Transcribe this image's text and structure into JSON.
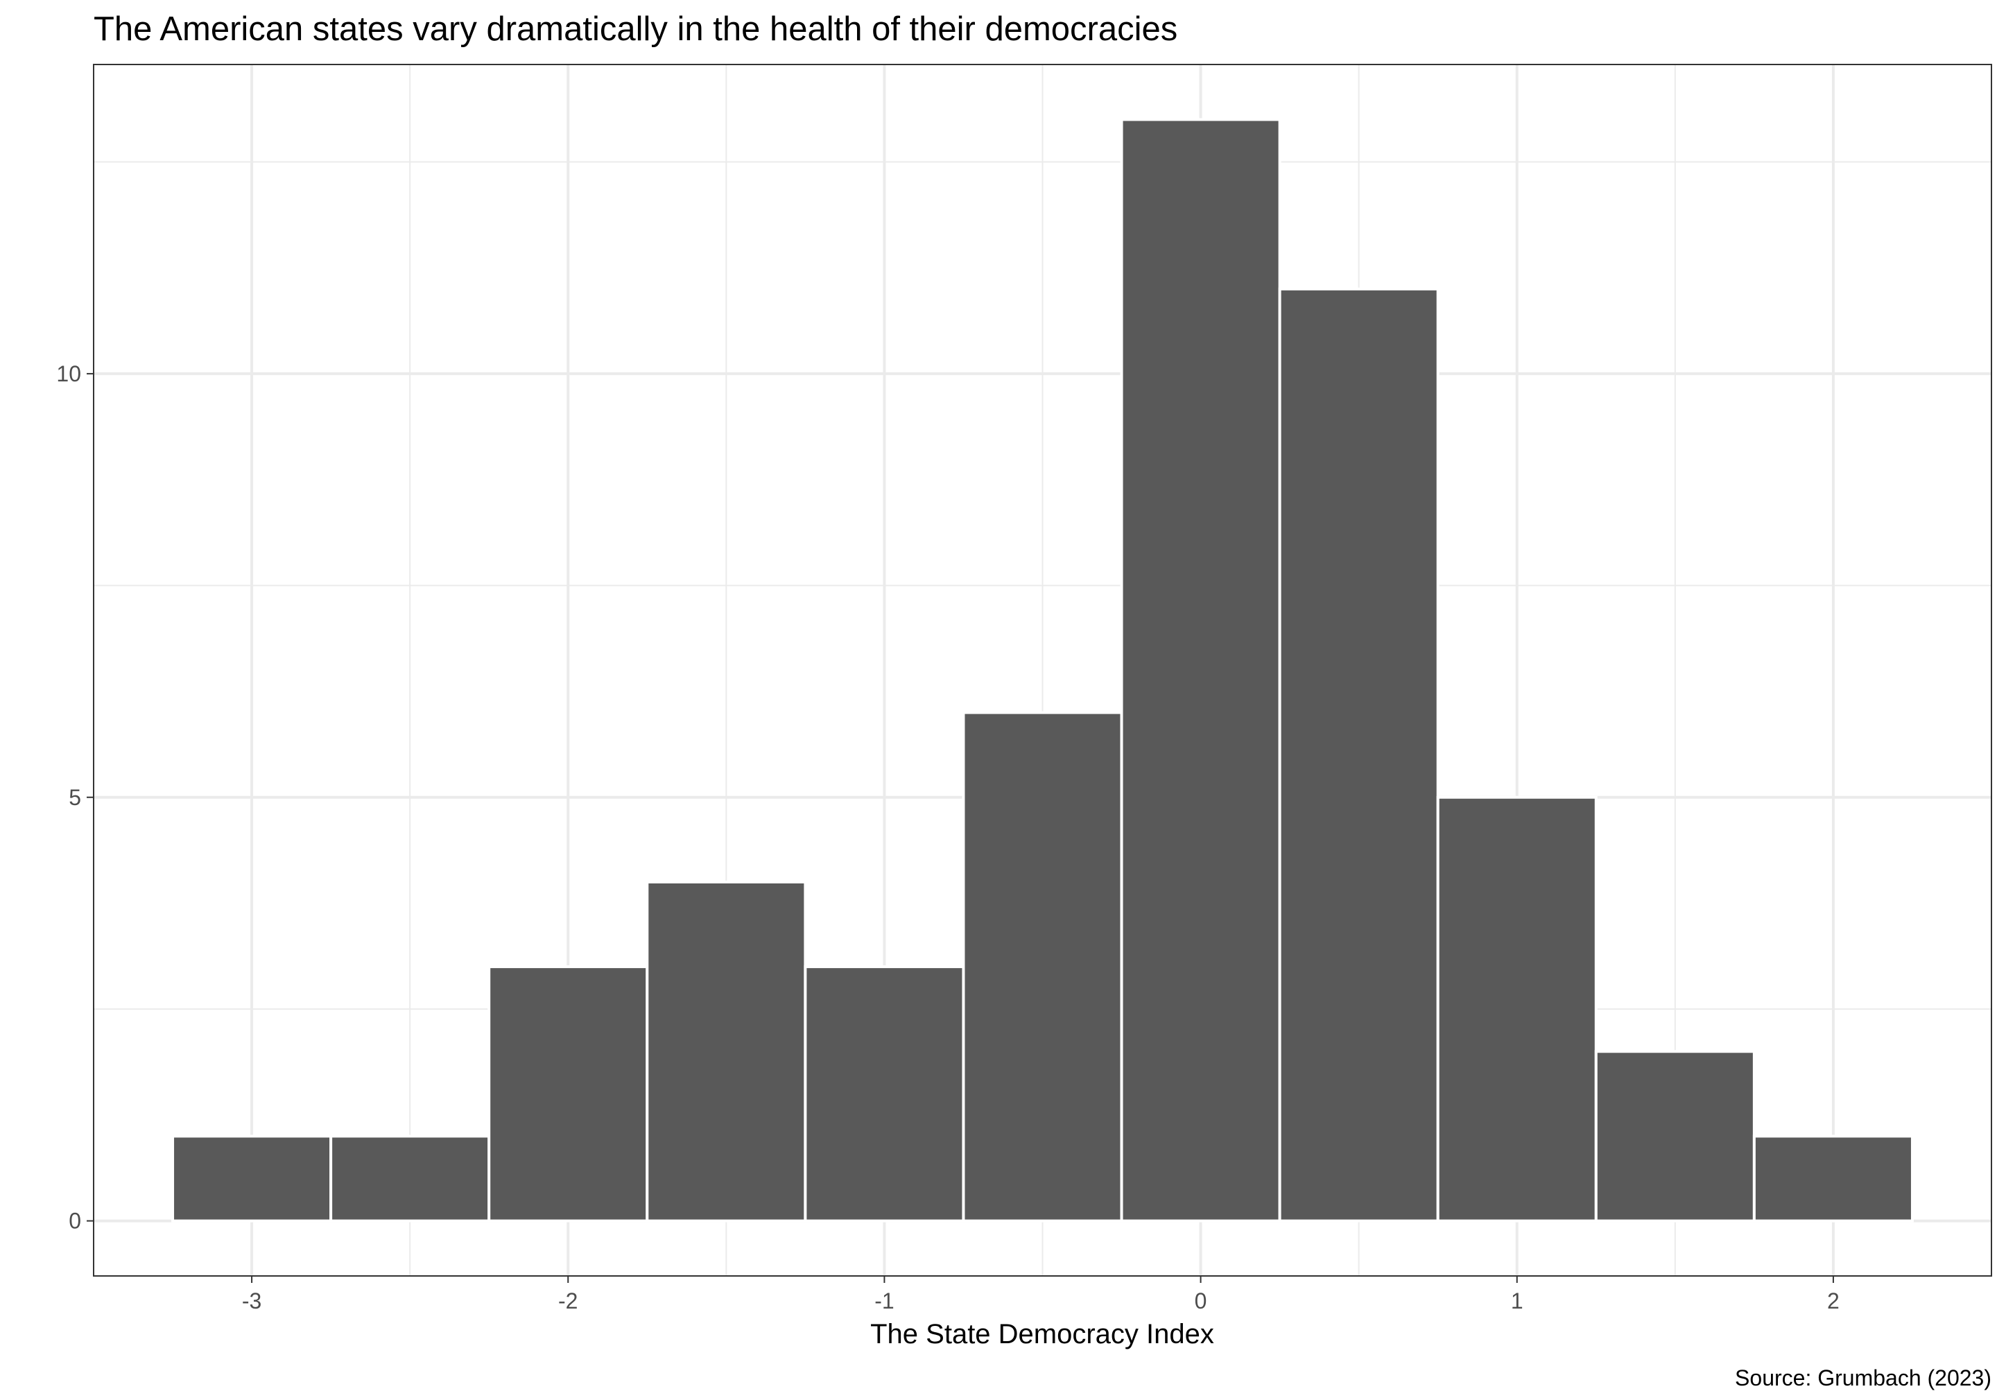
{
  "title": "The American states vary dramatically in the health of their democracies",
  "xlabel": "The State Democracy Index",
  "caption": "Source: Grumbach (2023)",
  "colors": {
    "bar_fill": "#595959",
    "bar_outline": "#ffffff",
    "grid": "#ebebeb",
    "panel_border": "#333333",
    "tick_text": "#4d4d4d"
  },
  "chart_data": {
    "type": "bar",
    "histogram": true,
    "bins": [
      {
        "x0": -3.25,
        "x1": -2.75,
        "count": 1
      },
      {
        "x0": -2.75,
        "x1": -2.25,
        "count": 1
      },
      {
        "x0": -2.25,
        "x1": -1.75,
        "count": 3
      },
      {
        "x0": -1.75,
        "x1": -1.25,
        "count": 4
      },
      {
        "x0": -1.25,
        "x1": -0.75,
        "count": 3
      },
      {
        "x0": -0.75,
        "x1": -0.25,
        "count": 6
      },
      {
        "x0": -0.25,
        "x1": 0.25,
        "count": 13
      },
      {
        "x0": 0.25,
        "x1": 0.75,
        "count": 11
      },
      {
        "x0": 0.75,
        "x1": 1.25,
        "count": 5
      },
      {
        "x0": 1.25,
        "x1": 1.75,
        "count": 2
      },
      {
        "x0": 1.75,
        "x1": 2.25,
        "count": 1
      }
    ],
    "x_ticks": [
      "-3",
      "-2",
      "-1",
      "0",
      "1",
      "2"
    ],
    "y_ticks": [
      "0",
      "5",
      "10"
    ],
    "xlim": [
      -3.5,
      2.5
    ],
    "ylim": [
      -0.65,
      13.65
    ],
    "grid": true,
    "xlabel": "The State Democracy Index",
    "ylabel": "",
    "title": "The American states vary dramatically in the health of their democracies"
  }
}
